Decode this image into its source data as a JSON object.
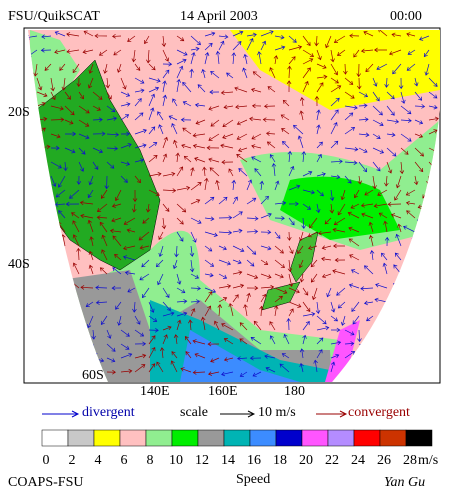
{
  "header": {
    "source": "FSU/QuikSCAT",
    "date": "14 April 2003",
    "time": "00:00"
  },
  "map": {
    "lat_labels": [
      "20S",
      "40S",
      "60S"
    ],
    "lon_labels": [
      "140E",
      "160E",
      "180"
    ]
  },
  "legend": {
    "divergent": "divergent",
    "scale": "scale",
    "scale_value": "10 m/s",
    "convergent": "convergent"
  },
  "colorbar": {
    "labels": [
      "0",
      "2",
      "4",
      "6",
      "8",
      "10",
      "12",
      "14",
      "16",
      "18",
      "20",
      "22",
      "24",
      "26",
      "28"
    ],
    "unit": "m/s",
    "colors": [
      "#ffffff",
      "#c8c8c8",
      "#ffff00",
      "#ffc0c0",
      "#90ee90",
      "#00ee00",
      "#999999",
      "#00b4b4",
      "#3c8cff",
      "#0000cc",
      "#ff55ff",
      "#b48cff",
      "#ff0000",
      "#cc3300",
      "#000000"
    ]
  },
  "footer": {
    "org": "COAPS-FSU",
    "title": "Speed",
    "author": "Yan Gu"
  }
}
